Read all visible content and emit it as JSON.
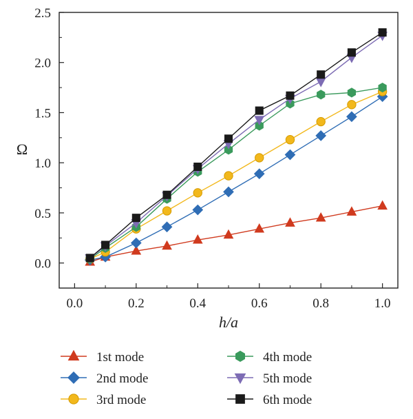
{
  "chart_data": {
    "type": "line",
    "xlabel": "h/a",
    "ylabel": "Ω",
    "xlim": [
      0.0,
      1.0
    ],
    "ylim": [
      0.0,
      2.5
    ],
    "x_ticks": [
      "0.0",
      "0.2",
      "0.4",
      "0.6",
      "0.8",
      "1.0"
    ],
    "y_ticks": [
      "0.0",
      "0.5",
      "1.0",
      "1.5",
      "2.0",
      "2.5"
    ],
    "grid": false,
    "legend_position": "bottom",
    "series": [
      {
        "name": "1st mode",
        "marker": "triangle-up",
        "color": "#d03a1e",
        "x": [
          0.05,
          0.1,
          0.2,
          0.3,
          0.4,
          0.5,
          0.6,
          0.7,
          0.8,
          0.9,
          1.0
        ],
        "values": [
          0.01,
          0.06,
          0.12,
          0.17,
          0.23,
          0.28,
          0.34,
          0.4,
          0.45,
          0.51,
          0.57
        ]
      },
      {
        "name": "2nd mode",
        "marker": "diamond",
        "color": "#2f6db5",
        "x": [
          0.05,
          0.1,
          0.2,
          0.3,
          0.4,
          0.5,
          0.6,
          0.7,
          0.8,
          0.9,
          1.0
        ],
        "values": [
          0.03,
          0.06,
          0.2,
          0.36,
          0.53,
          0.71,
          0.89,
          1.08,
          1.27,
          1.46,
          1.66
        ]
      },
      {
        "name": "3rd mode",
        "marker": "circle",
        "color": "#f2b81c",
        "x": [
          0.05,
          0.1,
          0.2,
          0.3,
          0.4,
          0.5,
          0.6,
          0.7,
          0.8,
          0.9,
          1.0
        ],
        "values": [
          0.04,
          0.11,
          0.34,
          0.52,
          0.7,
          0.87,
          1.05,
          1.23,
          1.41,
          1.58,
          1.71
        ]
      },
      {
        "name": "4th mode",
        "marker": "hexagon",
        "color": "#3a9a5c",
        "x": [
          0.05,
          0.1,
          0.2,
          0.3,
          0.4,
          0.5,
          0.6,
          0.7,
          0.8,
          0.9,
          1.0
        ],
        "values": [
          0.04,
          0.15,
          0.36,
          0.64,
          0.91,
          1.13,
          1.37,
          1.59,
          1.68,
          1.7,
          1.75
        ]
      },
      {
        "name": "5th mode",
        "marker": "triangle-down",
        "color": "#7d6cb4",
        "x": [
          0.05,
          0.1,
          0.2,
          0.3,
          0.4,
          0.5,
          0.6,
          0.7,
          0.8,
          0.9,
          1.0
        ],
        "values": [
          0.05,
          0.17,
          0.4,
          0.67,
          0.94,
          1.19,
          1.43,
          1.64,
          1.81,
          2.05,
          2.27
        ]
      },
      {
        "name": "6th mode",
        "marker": "square",
        "color": "#1a1a1a",
        "x": [
          0.05,
          0.1,
          0.2,
          0.3,
          0.4,
          0.5,
          0.6,
          0.7,
          0.8,
          0.9,
          1.0
        ],
        "values": [
          0.05,
          0.18,
          0.45,
          0.68,
          0.96,
          1.24,
          1.52,
          1.67,
          1.88,
          2.1,
          2.3
        ]
      }
    ]
  }
}
